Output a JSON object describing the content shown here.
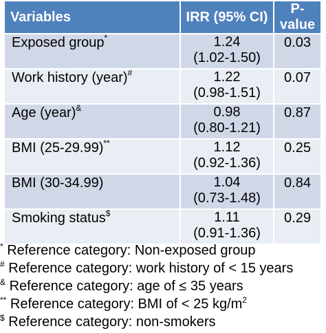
{
  "table": {
    "headers": [
      "Variables",
      "IRR (95% CI)",
      "P-value"
    ],
    "rows": [
      {
        "variable": "Exposed group",
        "mark": "*",
        "irr": "1.24",
        "ci": "(1.02-1.50)",
        "p": "0.03"
      },
      {
        "variable": "Work history (year)",
        "mark": "#",
        "irr": "1.22",
        "ci": "(0.98-1.51)",
        "p": "0.07"
      },
      {
        "variable": "Age (year)",
        "mark": "&",
        "irr": "0.98",
        "ci": "(0.80-1.21)",
        "p": "0.87"
      },
      {
        "variable": "BMI (25-29.99)",
        "mark": "**",
        "irr": "1.12",
        "ci": "(0.92-1.36)",
        "p": "0.25"
      },
      {
        "variable": "BMI (30-34.99)",
        "mark": "",
        "irr": "1.04",
        "ci": "(0.73-1.48)",
        "p": "0.84"
      },
      {
        "variable": "Smoking status",
        "mark": "$",
        "irr": "1.11",
        "ci": "(0.91-1.36)",
        "p": "0.29"
      }
    ]
  },
  "footnotes": [
    {
      "mark": "*",
      "text": " Reference category: Non-exposed group",
      "suffix": "",
      "suffix_sup": ""
    },
    {
      "mark": "#",
      "text": " Reference category: work history of < 15 years",
      "suffix": "",
      "suffix_sup": ""
    },
    {
      "mark": "&",
      "text": " Reference category: age of ≤ 35 years",
      "suffix": "",
      "suffix_sup": ""
    },
    {
      "mark": "**",
      "text": " Reference category: BMI of < 25 kg/m",
      "suffix": "",
      "suffix_sup": "2"
    },
    {
      "mark": "$",
      "text": " Reference category: non-smokers",
      "suffix": "",
      "suffix_sup": ""
    }
  ]
}
